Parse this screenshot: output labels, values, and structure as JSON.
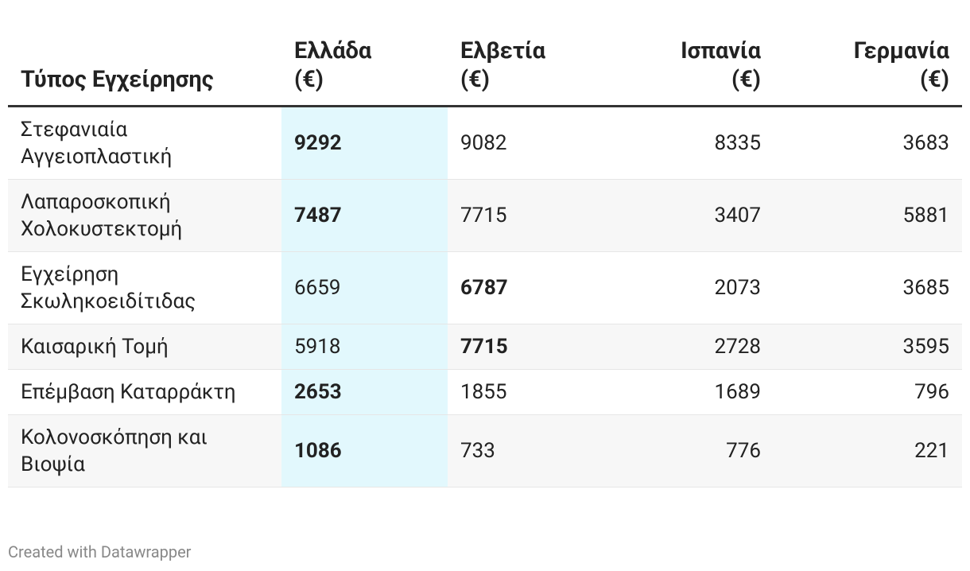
{
  "table": {
    "headers": [
      "Τύπος Εγχείρησης",
      "Ελλάδα (€)",
      "Ελβετία (€)",
      "Ισπανία (€)",
      "Γερμανία (€)"
    ],
    "rows": [
      [
        "Στεφανιαία Αγγειοπλαστική",
        9292,
        9082,
        8335,
        3683
      ],
      [
        "Λαπαροσκοπική Χολοκυστεκτομή",
        7487,
        7715,
        3407,
        5881
      ],
      [
        "Εγχείρηση Σκωληκοειδίτιδας",
        6659,
        6787,
        2073,
        3685
      ],
      [
        "Καισαρική Τομή",
        5918,
        7715,
        2728,
        3595
      ],
      [
        "Επέμβαση Καταρράκτη",
        2653,
        1855,
        1689,
        796
      ],
      [
        "Κολονοσκόπηση και Βιοψία",
        1086,
        733,
        776,
        221
      ]
    ],
    "bold_column": [
      1,
      1,
      2,
      2,
      1,
      1
    ]
  },
  "footer": "Created with Datawrapper"
}
